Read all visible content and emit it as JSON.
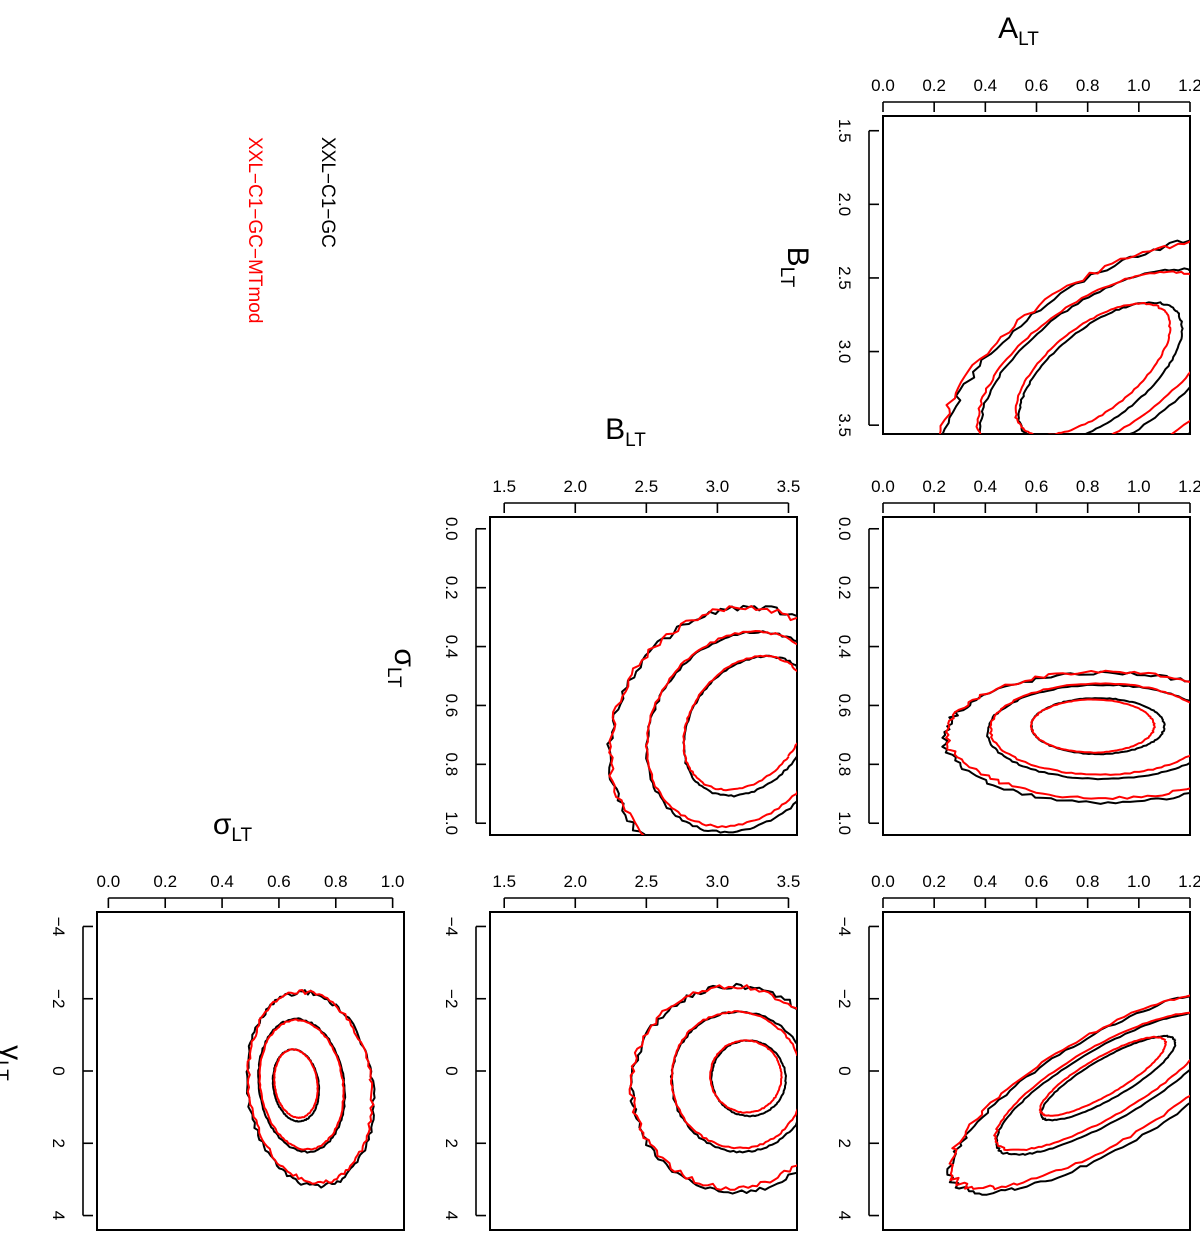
{
  "legend": [
    {
      "label": "XXL−C1−GC",
      "color": "#000000"
    },
    {
      "label": "XXL−C1−GC−MTmod",
      "color": "#ff0000"
    }
  ],
  "colors": {
    "black_series": "#000000",
    "red_series": "#ff0000"
  },
  "chart_data": [
    {
      "type": "contour",
      "xlabel": "A",
      "xlabel_sub": "LT",
      "ylabel": "B",
      "ylabel_sub": "LT",
      "xlim": [
        0.0,
        1.2
      ],
      "ylim": [
        1.4,
        3.56
      ],
      "xticks": [
        "0.0",
        "0.2",
        "0.4",
        "0.6",
        "0.8",
        "1.0",
        "1.2"
      ],
      "yticks": [
        "1.5",
        "2.0",
        "2.5",
        "3.0",
        "3.5"
      ],
      "series": [
        {
          "name": "XXL−C1−GC",
          "contours": [
            {
              "cx": 0.85,
              "cy": 3.14,
              "rx": 0.38,
              "ry": 0.31,
              "rot": -38
            },
            {
              "cx": 0.87,
              "cy": 3.11,
              "rx": 0.56,
              "ry": 0.47,
              "rot": -34
            },
            {
              "cx": 0.92,
              "cy": 3.12,
              "rx": 0.77,
              "ry": 0.64,
              "rot": -32
            }
          ]
        },
        {
          "name": "XXL−C1−GC−MTmod",
          "contours": [
            {
              "cx": 0.82,
              "cy": 3.12,
              "rx": 0.36,
              "ry": 0.29,
              "rot": -38
            },
            {
              "cx": 0.84,
              "cy": 3.1,
              "rx": 0.54,
              "ry": 0.45,
              "rot": -34
            },
            {
              "cx": 0.88,
              "cy": 3.11,
              "rx": 0.74,
              "ry": 0.61,
              "rot": -32
            }
          ]
        }
      ]
    },
    {
      "type": "contour",
      "xlabel": "B",
      "xlabel_sub": "LT",
      "ylabel": "σ",
      "ylabel_sub": "LT",
      "xlim": [
        1.4,
        3.56
      ],
      "ylim": [
        -0.04,
        1.04
      ],
      "xticks": [
        "1.5",
        "2.0",
        "2.5",
        "3.0",
        "3.5"
      ],
      "yticks": [
        "0.0",
        "0.2",
        "0.4",
        "0.6",
        "0.8",
        "1.0"
      ],
      "series": [
        {
          "name": "XXL−C1−GC",
          "contours": [
            {
              "cx": 3.22,
              "cy": 0.67,
              "rx": 0.4,
              "ry": 0.26,
              "rot": 38
            },
            {
              "cx": 3.17,
              "cy": 0.69,
              "rx": 0.62,
              "ry": 0.36,
              "rot": 36
            },
            {
              "cx": 3.12,
              "cy": 0.71,
              "rx": 0.84,
              "ry": 0.46,
              "rot": 34
            }
          ]
        },
        {
          "name": "XXL−C1−GC−MTmod",
          "contours": [
            {
              "cx": 3.2,
              "cy": 0.66,
              "rx": 0.38,
              "ry": 0.25,
              "rot": 38
            },
            {
              "cx": 3.15,
              "cy": 0.68,
              "rx": 0.6,
              "ry": 0.35,
              "rot": 36
            },
            {
              "cx": 3.1,
              "cy": 0.7,
              "rx": 0.82,
              "ry": 0.45,
              "rot": 34
            }
          ]
        }
      ]
    },
    {
      "type": "contour",
      "xlabel": "",
      "xlabel_sub": "",
      "ylabel": "",
      "ylabel_sub": "",
      "xlim": [
        0.0,
        1.2
      ],
      "ylim": [
        -0.04,
        1.04
      ],
      "xticks": [
        "0.0",
        "0.2",
        "0.4",
        "0.6",
        "0.8",
        "1.0",
        "1.2"
      ],
      "yticks": [
        "0.0",
        "0.2",
        "0.4",
        "0.6",
        "0.8",
        "1.0"
      ],
      "series": [
        {
          "name": "XXL−C1−GC",
          "contours": [
            {
              "cx": 0.84,
              "cy": 0.67,
              "rx": 0.26,
              "ry": 0.095,
              "rot": 0
            },
            {
              "cx": 0.86,
              "cy": 0.69,
              "rx": 0.45,
              "ry": 0.16,
              "rot": 0
            },
            {
              "cx": 0.88,
              "cy": 0.71,
              "rx": 0.64,
              "ry": 0.22,
              "rot": 0
            }
          ]
        },
        {
          "name": "XXL−C1−GC−MTmod",
          "contours": [
            {
              "cx": 0.82,
              "cy": 0.67,
              "rx": 0.24,
              "ry": 0.09,
              "rot": 0
            },
            {
              "cx": 0.85,
              "cy": 0.68,
              "rx": 0.43,
              "ry": 0.155,
              "rot": 0
            },
            {
              "cx": 0.87,
              "cy": 0.7,
              "rx": 0.62,
              "ry": 0.215,
              "rot": 0
            }
          ]
        }
      ]
    },
    {
      "type": "contour",
      "xlabel": "σ",
      "xlabel_sub": "LT",
      "ylabel": "γ",
      "ylabel_sub": "LT",
      "xlim": [
        -0.04,
        1.04
      ],
      "ylim": [
        -4.4,
        4.4
      ],
      "xticks": [
        "0.0",
        "0.2",
        "0.4",
        "0.6",
        "0.8",
        "1.0"
      ],
      "yticks": [
        "−4",
        "−2",
        "0",
        "2",
        "4"
      ],
      "series": [
        {
          "name": "XXL−C1−GC",
          "contours": [
            {
              "cx": 0.66,
              "cy": 0.4,
              "rx": 0.08,
              "ry": 1.0,
              "rot": -8
            },
            {
              "cx": 0.68,
              "cy": 0.4,
              "rx": 0.15,
              "ry": 1.85,
              "rot": -8
            },
            {
              "cx": 0.71,
              "cy": 0.5,
              "rx": 0.22,
              "ry": 2.7,
              "rot": -8
            }
          ]
        },
        {
          "name": "XXL−C1−GC−MTmod",
          "contours": [
            {
              "cx": 0.66,
              "cy": 0.35,
              "rx": 0.075,
              "ry": 0.95,
              "rot": -8
            },
            {
              "cx": 0.68,
              "cy": 0.38,
              "rx": 0.145,
              "ry": 1.8,
              "rot": -8
            },
            {
              "cx": 0.71,
              "cy": 0.45,
              "rx": 0.215,
              "ry": 2.65,
              "rot": -8
            }
          ]
        }
      ]
    },
    {
      "type": "contour",
      "xlabel": "",
      "xlabel_sub": "",
      "ylabel": "",
      "ylabel_sub": "",
      "xlim": [
        1.4,
        3.56
      ],
      "ylim": [
        -4.4,
        4.4
      ],
      "xticks": [
        "1.5",
        "2.0",
        "2.5",
        "3.0",
        "3.5"
      ],
      "yticks": [
        "−4",
        "−2",
        "0",
        "2",
        "4"
      ],
      "series": [
        {
          "name": "XXL−C1−GC",
          "contours": [
            {
              "cx": 3.22,
              "cy": 0.2,
              "rx": 0.26,
              "ry": 1.05,
              "rot": -22
            },
            {
              "cx": 3.16,
              "cy": 0.3,
              "rx": 0.48,
              "ry": 1.95,
              "rot": -22
            },
            {
              "cx": 3.12,
              "cy": 0.5,
              "rx": 0.72,
              "ry": 2.85,
              "rot": -22
            }
          ]
        },
        {
          "name": "XXL−C1−GC−MTmod",
          "contours": [
            {
              "cx": 3.2,
              "cy": 0.15,
              "rx": 0.25,
              "ry": 1.0,
              "rot": -22
            },
            {
              "cx": 3.14,
              "cy": 0.25,
              "rx": 0.46,
              "ry": 1.9,
              "rot": -22
            },
            {
              "cx": 3.1,
              "cy": 0.45,
              "rx": 0.7,
              "ry": 2.8,
              "rot": -22
            }
          ]
        }
      ]
    },
    {
      "type": "contour",
      "xlabel": "",
      "xlabel_sub": "",
      "ylabel": "",
      "ylabel_sub": "",
      "xlim": [
        0.0,
        1.2
      ],
      "ylim": [
        -4.4,
        4.4
      ],
      "xticks": [
        "0.0",
        "0.2",
        "0.4",
        "0.6",
        "0.8",
        "1.0",
        "1.2"
      ],
      "yticks": [
        "−4",
        "−2",
        "0",
        "2",
        "4"
      ],
      "series": [
        {
          "name": "XXL−C1−GC",
          "contours": [
            {
              "cx": 0.88,
              "cy": 0.2,
              "rx": 0.3,
              "ry": 0.55,
              "rot": -30
            },
            {
              "cx": 0.88,
              "cy": 0.35,
              "rx": 0.5,
              "ry": 1.0,
              "rot": -30
            },
            {
              "cx": 0.88,
              "cy": 0.55,
              "rx": 0.7,
              "ry": 1.55,
              "rot": -30
            }
          ]
        },
        {
          "name": "XXL−C1−GC−MTmod",
          "contours": [
            {
              "cx": 0.86,
              "cy": 0.15,
              "rx": 0.28,
              "ry": 0.52,
              "rot": -30
            },
            {
              "cx": 0.86,
              "cy": 0.3,
              "rx": 0.48,
              "ry": 0.97,
              "rot": -30
            },
            {
              "cx": 0.86,
              "cy": 0.5,
              "rx": 0.68,
              "ry": 1.5,
              "rot": -30
            }
          ]
        }
      ]
    }
  ]
}
